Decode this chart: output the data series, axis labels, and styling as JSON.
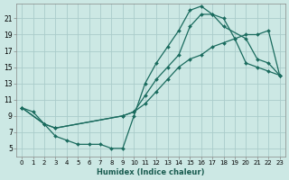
{
  "background_color": "#cce8e4",
  "grid_color": "#aaccca",
  "line_color": "#1a6b5e",
  "xlabel": "Humidex (Indice chaleur)",
  "xlim": [
    -0.5,
    23.5
  ],
  "ylim": [
    4.0,
    22.8
  ],
  "xticks": [
    0,
    1,
    2,
    3,
    4,
    5,
    6,
    7,
    8,
    9,
    10,
    11,
    12,
    13,
    14,
    15,
    16,
    17,
    18,
    19,
    20,
    21,
    22,
    23
  ],
  "yticks": [
    5,
    7,
    9,
    11,
    13,
    15,
    17,
    19,
    21
  ],
  "curve1_x": [
    0,
    1,
    2,
    3,
    4,
    5,
    6,
    7,
    8,
    9,
    10,
    11,
    12,
    13,
    14,
    15,
    16,
    17,
    18,
    19,
    20,
    21,
    22,
    23
  ],
  "curve1_y": [
    10.0,
    9.5,
    8.0,
    6.5,
    6.0,
    5.5,
    5.5,
    5.5,
    5.0,
    5.0,
    9.0,
    13.0,
    15.5,
    17.5,
    19.5,
    22.0,
    22.5,
    21.5,
    21.0,
    18.5,
    15.5,
    15.0,
    14.5,
    14.0
  ],
  "curve2_x": [
    0,
    2,
    3,
    9,
    10,
    11,
    12,
    13,
    14,
    15,
    16,
    17,
    18,
    20,
    21,
    22,
    23
  ],
  "curve2_y": [
    10.0,
    8.0,
    7.5,
    9.0,
    9.5,
    11.5,
    13.5,
    15.0,
    16.5,
    20.0,
    21.5,
    21.5,
    20.0,
    18.5,
    16.0,
    15.5,
    14.0
  ],
  "curve3_x": [
    0,
    2,
    3,
    9,
    10,
    11,
    12,
    13,
    14,
    15,
    16,
    17,
    18,
    19,
    20,
    21,
    22,
    23
  ],
  "curve3_y": [
    10.0,
    8.0,
    7.5,
    9.0,
    9.5,
    10.5,
    12.0,
    13.5,
    15.0,
    16.0,
    16.5,
    17.5,
    18.0,
    18.5,
    19.0,
    19.0,
    19.5,
    14.0
  ]
}
